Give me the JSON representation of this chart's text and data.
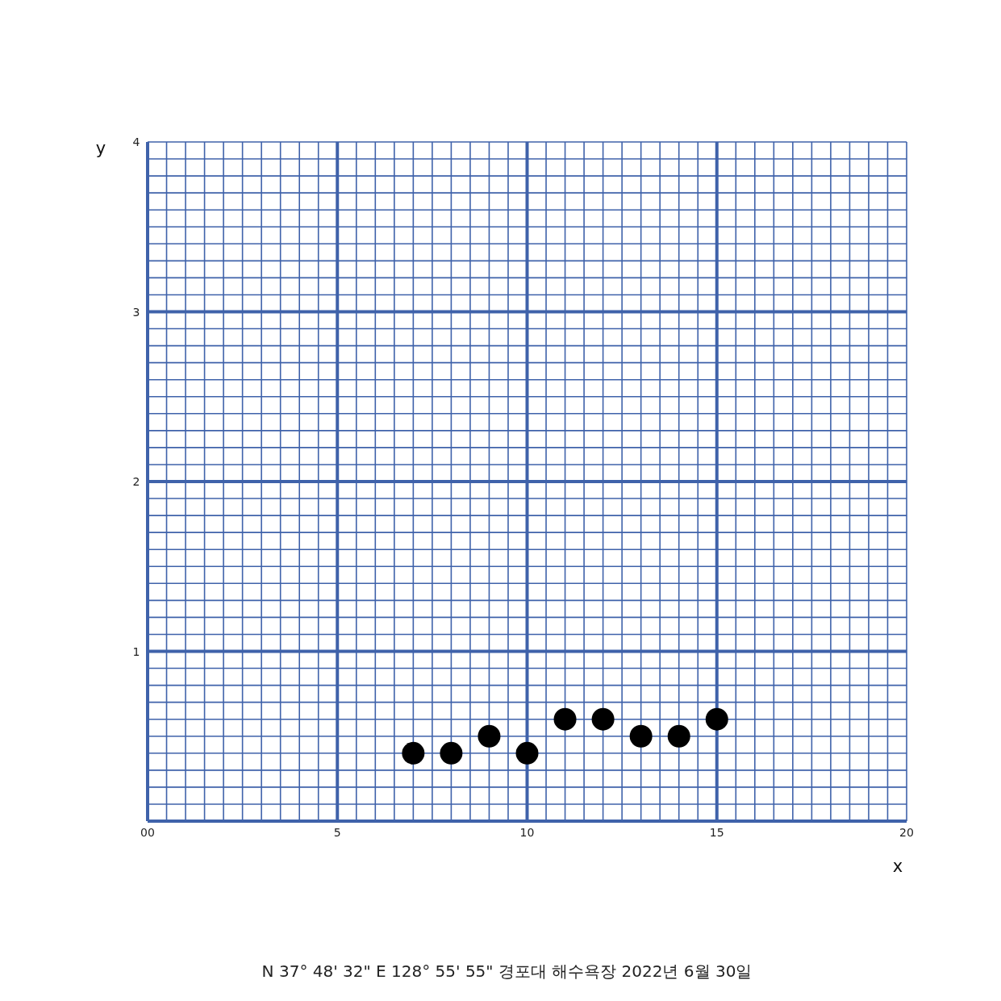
{
  "chart_data": {
    "type": "scatter",
    "xlabel": "x",
    "ylabel": "y",
    "x": [
      7,
      8,
      9,
      10,
      11,
      12,
      13,
      14,
      15
    ],
    "series": [
      {
        "color": "#000000",
        "values": [
          0.4,
          0.4,
          0.5,
          0.4,
          0.6,
          0.6,
          0.5,
          0.5,
          0.6
        ]
      }
    ],
    "marker": "circle",
    "grid": true,
    "xlim": [
      0,
      20
    ],
    "ylim": [
      0,
      4
    ],
    "xticks": [
      {
        "value": 0,
        "label": "00"
      },
      {
        "value": 0.5,
        "label": null
      },
      {
        "value": 1,
        "label": null
      },
      {
        "value": 1.5,
        "label": null
      },
      {
        "value": 2,
        "label": null
      },
      {
        "value": 2.5,
        "label": null
      },
      {
        "value": 3,
        "label": null
      },
      {
        "value": 3.5,
        "label": null
      },
      {
        "value": 4,
        "label": null
      },
      {
        "value": 4.5,
        "label": null
      },
      5,
      {
        "value": 5.5,
        "label": null
      },
      {
        "value": 6,
        "label": null
      },
      {
        "value": 6.5,
        "label": null
      },
      {
        "value": 7,
        "label": null
      },
      {
        "value": 7.5,
        "label": null
      },
      {
        "value": 8,
        "label": null
      },
      {
        "value": 8.5,
        "label": null
      },
      {
        "value": 9,
        "label": null
      },
      {
        "value": 9.5,
        "label": null
      },
      10,
      {
        "value": 10.5,
        "label": null
      },
      {
        "value": 11,
        "label": null
      },
      {
        "value": 11.5,
        "label": null
      },
      {
        "value": 12,
        "label": null
      },
      {
        "value": 12.5,
        "label": null
      },
      {
        "value": 13,
        "label": null
      },
      {
        "value": 13.5,
        "label": null
      },
      {
        "value": 14,
        "label": null
      },
      {
        "value": 14.5,
        "label": null
      },
      15,
      {
        "value": 15.5,
        "label": null
      },
      {
        "value": 16,
        "label": null
      },
      {
        "value": 16.5,
        "label": null
      },
      {
        "value": 17,
        "label": null
      },
      {
        "value": 17.5,
        "label": null
      },
      {
        "value": 18,
        "label": null
      },
      {
        "value": 18.5,
        "label": null
      },
      {
        "value": 19,
        "label": null
      },
      {
        "value": 19.5,
        "label": null
      },
      20
    ],
    "yticks": [
      {
        "value": 0,
        "label": null
      },
      {
        "value": 0.1,
        "label": null
      },
      {
        "value": 0.2,
        "label": null
      },
      {
        "value": 0.3,
        "label": null
      },
      {
        "value": 0.4,
        "label": null
      },
      {
        "value": 0.5,
        "label": null
      },
      {
        "value": 0.6,
        "label": null
      },
      {
        "value": 0.7,
        "label": null
      },
      {
        "value": 0.8,
        "label": null
      },
      {
        "value": 0.9,
        "label": null
      },
      1,
      {
        "value": 1.1,
        "label": null
      },
      {
        "value": 1.2,
        "label": null
      },
      {
        "value": 1.3,
        "label": null
      },
      {
        "value": 1.4,
        "label": null
      },
      {
        "value": 1.5,
        "label": null
      },
      {
        "value": 1.6,
        "label": null
      },
      {
        "value": 1.7,
        "label": null
      },
      {
        "value": 1.8,
        "label": null
      },
      {
        "value": 1.9,
        "label": null
      },
      2,
      {
        "value": 2.1,
        "label": null
      },
      {
        "value": 2.2,
        "label": null
      },
      {
        "value": 2.3,
        "label": null
      },
      {
        "value": 2.4,
        "label": null
      },
      {
        "value": 2.5,
        "label": null
      },
      {
        "value": 2.6,
        "label": null
      },
      {
        "value": 2.7,
        "label": null
      },
      {
        "value": 2.8,
        "label": null
      },
      {
        "value": 2.9,
        "label": null
      },
      3,
      {
        "value": 3.1,
        "label": null
      },
      {
        "value": 3.2,
        "label": null
      },
      {
        "value": 3.3,
        "label": null
      },
      {
        "value": 3.4,
        "label": null
      },
      {
        "value": 3.5,
        "label": null
      },
      {
        "value": 3.6,
        "label": null
      },
      {
        "value": 3.7,
        "label": null
      },
      {
        "value": 3.8,
        "label": null
      },
      {
        "value": 3.9,
        "label": null
      },
      4
    ],
    "annotations": [
      "N 37° 48' 32\" E 128° 55' 55\" 경포대 해수욕장 2022년 6월 30일"
    ]
  }
}
